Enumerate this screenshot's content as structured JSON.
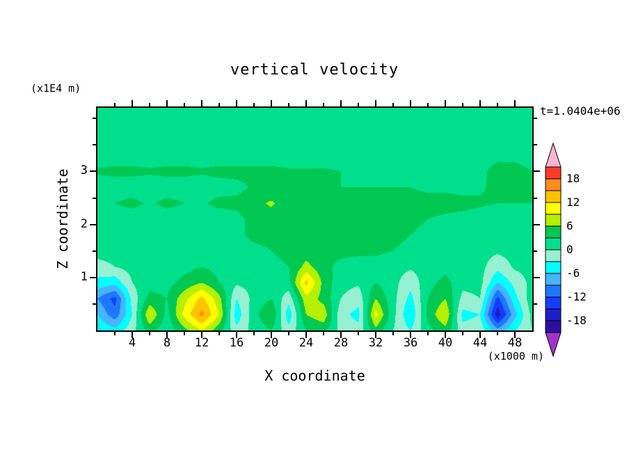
{
  "title": "vertical velocity",
  "timestamp_label": "t=1.0404e+06",
  "axes": {
    "x": {
      "label": "X coordinate",
      "unit_label": "(x1000 m)",
      "min": 0,
      "max": 50,
      "ticks": [
        4,
        8,
        12,
        16,
        20,
        24,
        28,
        32,
        36,
        40,
        44,
        48
      ],
      "minor_ticks": [
        2,
        6,
        10,
        14,
        18,
        22,
        26,
        30,
        34,
        38,
        42,
        46
      ]
    },
    "z": {
      "label": "Z coordinate",
      "unit_label": "(x1E4 m)",
      "min": 0,
      "max": 4.2,
      "ticks": [
        1,
        2,
        3
      ],
      "minor_ticks": [
        0.5,
        1.5,
        2.5,
        3.5,
        4
      ]
    }
  },
  "colorbar": {
    "labels": [
      18,
      12,
      6,
      0,
      -6,
      -12,
      -18
    ],
    "level_step": 3,
    "min": -21,
    "max": 21
  },
  "chart_data": {
    "type": "heatmap",
    "title": "vertical velocity",
    "xlabel": "X coordinate (x1000 m)",
    "ylabel": "Z coordinate (x1E4 m)",
    "time_label": "t=1.0404e+06",
    "x_range": [
      0,
      50
    ],
    "z_range": [
      0,
      4.2
    ],
    "contour_levels": [
      -21,
      -18,
      -15,
      -12,
      -9,
      -6,
      -3,
      0,
      3,
      6,
      9,
      12,
      15,
      18,
      21
    ],
    "colors": [
      "#a032c8",
      "#2d0fa0",
      "#1e1ec8",
      "#143cff",
      "#1e78ff",
      "#46b4ff",
      "#00ffff",
      "#96f0d2",
      "#00e08c",
      "#00c853",
      "#b4f000",
      "#ffff00",
      "#ffc300",
      "#ff8c1e",
      "#fa3c28",
      "#f7b6d2"
    ],
    "x": [
      0,
      2,
      4,
      6,
      8,
      10,
      12,
      14,
      16,
      18,
      20,
      22,
      24,
      26,
      28,
      30,
      32,
      34,
      36,
      38,
      40,
      42,
      44,
      46,
      48,
      50
    ],
    "z": [
      0,
      0.3,
      0.6,
      0.9,
      1.2,
      1.5,
      1.8,
      2.1,
      2.4,
      2.7,
      3.0,
      3.3,
      3.6,
      3.9,
      4.2
    ],
    "values": [
      [
        -3,
        -5,
        -1,
        4,
        1,
        5,
        9,
        4,
        -2,
        1,
        3,
        -2,
        3,
        4,
        -1,
        -2,
        5,
        0,
        -3,
        2,
        5,
        -2,
        -1,
        -8,
        -3,
        0
      ],
      [
        -6,
        -11,
        -3,
        9,
        2,
        10,
        16,
        9,
        -5,
        2,
        6,
        -5,
        6,
        8,
        -2,
        -4,
        10,
        1,
        -6,
        4,
        9,
        -4,
        -3,
        -17,
        -7,
        1
      ],
      [
        -9,
        -13,
        -2,
        4,
        3,
        8,
        13,
        7,
        -3,
        1,
        3,
        -2,
        8,
        5,
        0,
        -2,
        6,
        1,
        -4,
        3,
        6,
        -1,
        0,
        -13,
        -4,
        2
      ],
      [
        -4,
        -5,
        0,
        2,
        2,
        4,
        6,
        3,
        0.5,
        1,
        2,
        2,
        13,
        5,
        1,
        0.5,
        3,
        1,
        -2,
        2,
        4,
        1,
        1,
        -6,
        -2,
        1
      ],
      [
        -1,
        0,
        1,
        1,
        1,
        2,
        3,
        2,
        1,
        1.5,
        2,
        3,
        7,
        4,
        2,
        1,
        2,
        1,
        0.5,
        1,
        2,
        1,
        1,
        -2,
        0.5,
        1
      ],
      [
        1,
        1,
        1,
        1,
        1,
        1,
        2,
        1,
        1,
        2,
        3,
        4,
        4.5,
        4,
        4,
        4,
        3.5,
        3,
        2.5,
        2,
        2,
        1.5,
        1,
        0.5,
        1,
        1
      ],
      [
        1,
        1,
        1,
        1,
        1,
        1,
        1.5,
        1,
        2,
        4,
        4,
        4,
        4,
        4,
        4,
        4,
        4,
        3.5,
        3,
        2.5,
        2,
        1.5,
        1,
        1,
        1,
        1
      ],
      [
        1,
        1,
        1,
        1,
        1,
        1,
        1,
        1,
        2,
        4,
        4.5,
        4.5,
        4,
        4,
        4,
        4,
        4,
        4,
        3.5,
        3,
        2.5,
        2,
        1.5,
        1,
        1,
        1
      ],
      [
        1,
        3,
        4,
        2.5,
        4,
        3,
        2.5,
        4,
        4,
        5,
        6.5,
        4,
        6,
        4,
        4,
        4,
        4,
        4,
        4,
        4,
        4,
        4,
        3.5,
        3,
        3,
        3
      ],
      [
        1,
        1,
        1,
        1,
        1,
        1,
        1,
        1.5,
        2,
        3.5,
        3.5,
        3,
        3,
        3,
        3,
        3,
        3,
        3,
        3,
        2.5,
        2.5,
        2,
        2.5,
        4,
        4,
        3
      ],
      [
        3.5,
        4,
        4,
        3.5,
        4,
        4,
        3.5,
        4,
        4,
        4,
        4,
        3.5,
        3.5,
        3.5,
        3,
        2,
        1,
        1,
        1,
        1,
        1,
        1,
        2,
        4.5,
        4.5,
        3
      ],
      [
        1,
        1,
        1,
        1,
        1,
        1,
        1,
        1,
        1,
        1,
        1,
        1,
        1,
        1,
        1,
        1,
        1,
        1,
        1,
        1,
        1,
        1,
        1,
        2,
        2,
        1
      ],
      [
        1,
        1,
        1,
        1,
        1,
        1,
        1,
        1,
        1,
        1,
        1,
        1,
        1,
        1,
        1,
        1,
        1,
        1,
        1,
        1,
        1,
        1,
        1,
        1,
        1,
        1
      ],
      [
        1,
        1,
        1,
        1,
        1,
        1,
        1,
        1,
        1,
        1,
        1,
        1,
        1,
        1,
        1,
        1,
        1,
        1,
        1,
        1,
        1,
        1,
        1,
        1,
        1,
        1
      ],
      [
        1,
        1,
        1,
        1,
        1,
        1,
        1,
        1,
        1,
        1,
        1,
        1,
        1,
        1,
        1,
        1,
        1,
        1,
        1,
        1,
        1,
        1,
        1,
        1,
        1,
        1
      ]
    ]
  }
}
